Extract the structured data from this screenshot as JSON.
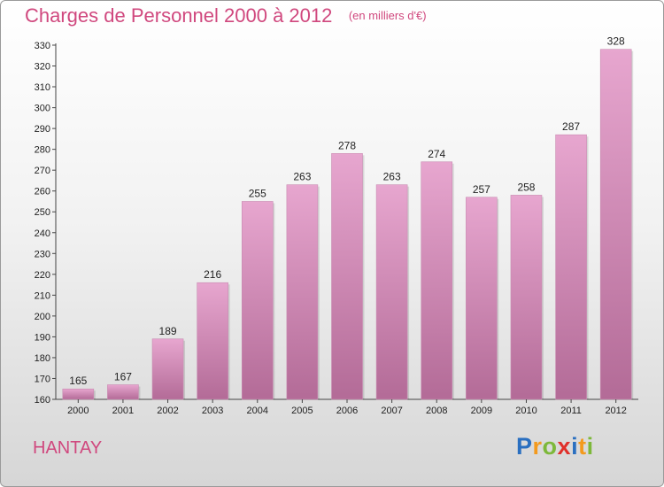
{
  "title": "Charges de Personnel 2000 à 2012",
  "subtitle": "(en milliers d'€)",
  "place": "HANTAY",
  "logo": {
    "letters": [
      "P",
      "r",
      "o",
      "x",
      "i",
      "t",
      "i"
    ],
    "colors": [
      "#2a6fc0",
      "#f39a1e",
      "#7db83a",
      "#e0302a",
      "#2a6fc0",
      "#f39a1e",
      "#7db83a"
    ]
  },
  "colors": {
    "accent": "#d0487e",
    "bar_top": "#e7a6cf",
    "bar_bottom": "#b36b97"
  },
  "chart_data": {
    "type": "bar",
    "categories": [
      "2000",
      "2001",
      "2002",
      "2003",
      "2004",
      "2005",
      "2006",
      "2007",
      "2008",
      "2009",
      "2010",
      "2011",
      "2012"
    ],
    "values": [
      165,
      167,
      189,
      216,
      255,
      263,
      278,
      263,
      274,
      257,
      258,
      287,
      328
    ],
    "ylim": [
      160,
      330
    ],
    "yticks": [
      160,
      170,
      180,
      190,
      200,
      210,
      220,
      230,
      240,
      250,
      260,
      270,
      280,
      290,
      300,
      310,
      320,
      330
    ],
    "grid": false,
    "data_labels": true
  }
}
